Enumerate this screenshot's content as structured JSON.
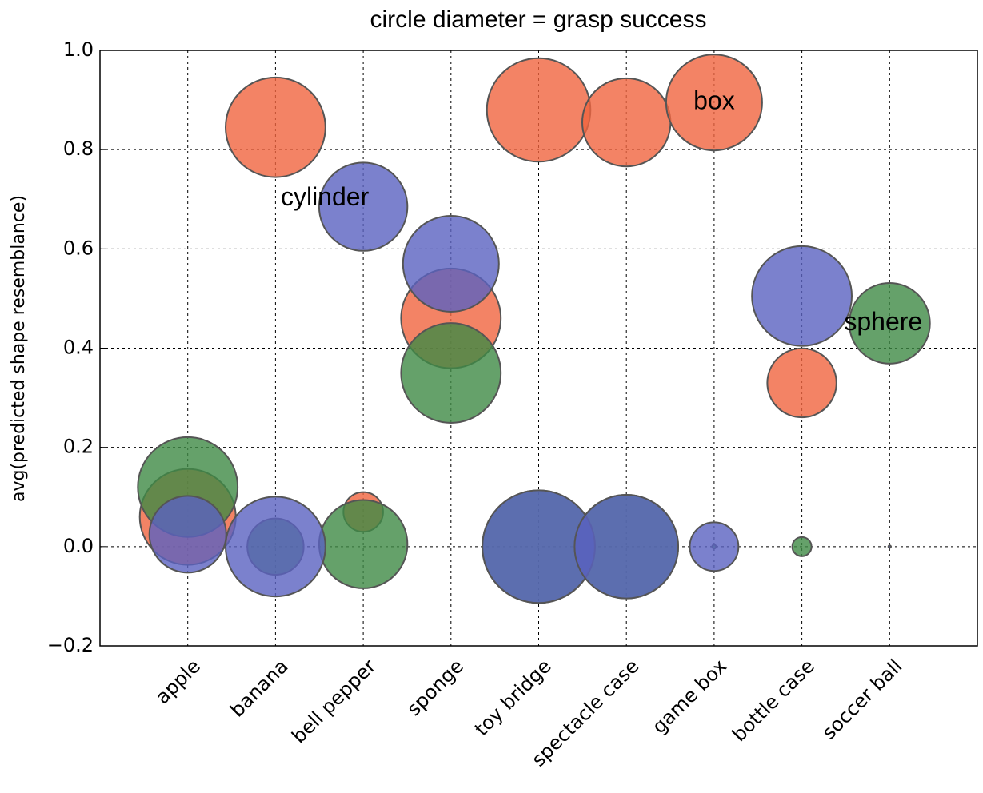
{
  "chart_data": {
    "type": "bubble",
    "title": "circle diameter = grasp success",
    "y_label": "avg(predicted shape resemblance)",
    "categories": [
      "apple",
      "banana",
      "bell pepper",
      "sponge",
      "toy bridge",
      "spectacle case",
      "game box",
      "bottle case",
      "soccer ball"
    ],
    "series": [
      {
        "name": "box",
        "color": "#f0643f",
        "values": [
          0.06,
          0.845,
          0.07,
          0.46,
          0.88,
          0.855,
          0.895,
          0.33,
          null
        ],
        "sizes": [
          0.75,
          0.78,
          0.31,
          0.78,
          0.81,
          0.69,
          0.75,
          0.54,
          null
        ]
      },
      {
        "name": "sphere",
        "color": "#3f8a45",
        "values": [
          0.12,
          0.0,
          0.005,
          0.35,
          0.0,
          0.0,
          0.0,
          0.0,
          0.45
        ],
        "sizes": [
          0.78,
          0.44,
          0.69,
          0.78,
          0.88,
          0.81,
          0.03,
          0.15,
          0.63
        ]
      },
      {
        "name": "cylinder",
        "color": "#5a62c0",
        "values": [
          0.025,
          0.0,
          0.685,
          0.57,
          0.0,
          0.0,
          0.0,
          0.505,
          0.0
        ],
        "sizes": [
          0.6,
          0.78,
          0.69,
          0.75,
          0.88,
          0.81,
          0.38,
          0.78,
          0.02
        ]
      }
    ],
    "ylim": [
      -0.2,
      1.0
    ],
    "yticks": [
      {
        "value": -0.2,
        "label": "−0.2"
      },
      {
        "value": 0,
        "label": "0.0"
      },
      0.2,
      0.4,
      0.6,
      0.8,
      {
        "value": 1.0,
        "label": "1.0"
      }
    ],
    "grid": true
  }
}
